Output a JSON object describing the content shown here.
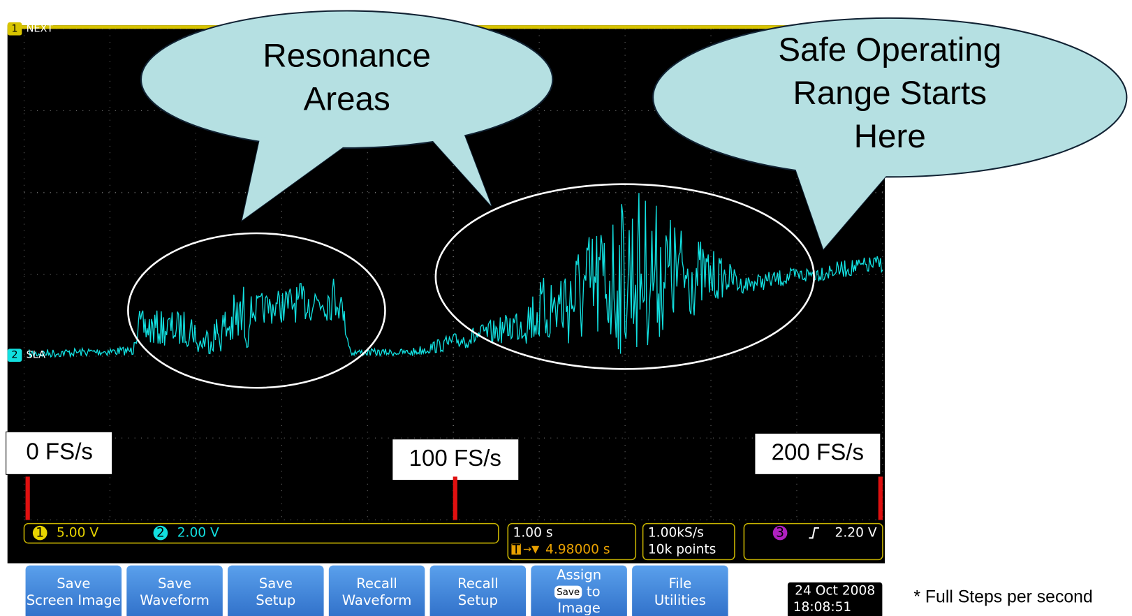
{
  "screen": {
    "channels": [
      {
        "number": "1",
        "name": "NEXT"
      },
      {
        "number": "2",
        "name": "SLA"
      }
    ]
  },
  "callouts": [
    {
      "lines": [
        "Resonance",
        "Areas"
      ]
    },
    {
      "lines": [
        "Safe Operating",
        "Range Starts",
        "Here"
      ]
    }
  ],
  "markers": [
    "0 FS/s",
    "100 FS/s",
    "200 FS/s"
  ],
  "status": {
    "ch1": {
      "number": "1",
      "scale": "5.00 V"
    },
    "ch2": {
      "number": "2",
      "scale": "2.00 V"
    },
    "timebase": "1.00 s",
    "trigger_position": {
      "icon": "T",
      "value": "4.98000 s"
    },
    "sample_rate": "1.00kS/s",
    "record_length": "10k points",
    "trigger": {
      "channel": "3",
      "level": "2.20 V"
    }
  },
  "buttons": [
    {
      "lines": [
        "Save",
        "Screen Image"
      ]
    },
    {
      "lines": [
        "Save",
        "Waveform"
      ]
    },
    {
      "lines": [
        "Save",
        "Setup"
      ]
    },
    {
      "lines": [
        "Recall",
        "Waveform"
      ]
    },
    {
      "lines": [
        "Recall",
        "Setup"
      ]
    },
    {
      "lines": [
        "Assign",
        "to",
        "Image"
      ],
      "badge": "Save"
    },
    {
      "lines": [
        "File",
        "Utilities"
      ]
    }
  ],
  "date": "24 Oct 2008",
  "time": "18:08:51",
  "footnote": "* Full Steps per second"
}
